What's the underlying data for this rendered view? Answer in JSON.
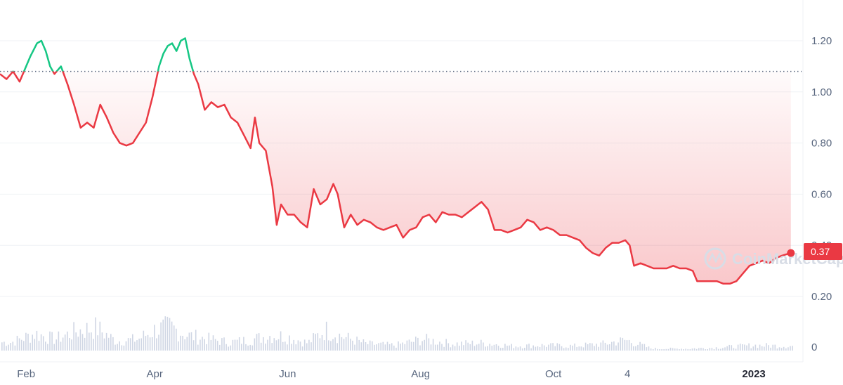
{
  "watermark": "CoinMarketCap",
  "current_price_label": "0.37",
  "colors": {
    "up": "#16c784",
    "down": "#ea3943",
    "grid": "#eff2f5",
    "volume": "#cfd6e4",
    "axis_text": "#58667e"
  },
  "chart_data": {
    "type": "line",
    "title": "",
    "xlabel": "",
    "ylabel": "",
    "ylim": [
      0.15,
      1.35
    ],
    "yticks": [
      "0.20",
      "0.40",
      "0.60",
      "0.80",
      "1.00",
      "1.20"
    ],
    "volume_tick": "0",
    "reference_price": 1.08,
    "current_price": 0.37,
    "x_ticks": [
      {
        "label": "Feb",
        "date": "2022-02-01",
        "bold": false
      },
      {
        "label": "Apr",
        "date": "2022-04-01",
        "bold": false
      },
      {
        "label": "Jun",
        "date": "2022-06-01",
        "bold": false
      },
      {
        "label": "Aug",
        "date": "2022-08-01",
        "bold": false
      },
      {
        "label": "Oct",
        "date": "2022-10-01",
        "bold": false
      },
      {
        "label": "4",
        "date": "2022-11-04",
        "bold": false
      },
      {
        "label": "2023",
        "date": "2023-01-01",
        "bold": true
      }
    ],
    "x_range": [
      "2022-01-20",
      "2023-01-20"
    ],
    "series": [
      {
        "points": [
          [
            "2022-01-20",
            1.07
          ],
          [
            "2022-01-23",
            1.05
          ],
          [
            "2022-01-26",
            1.08
          ],
          [
            "2022-01-29",
            1.04
          ],
          [
            "2022-02-01",
            1.1
          ],
          [
            "2022-02-03",
            1.14
          ],
          [
            "2022-02-06",
            1.19
          ],
          [
            "2022-02-08",
            1.2
          ],
          [
            "2022-02-10",
            1.16
          ],
          [
            "2022-02-12",
            1.1
          ],
          [
            "2022-02-14",
            1.07
          ],
          [
            "2022-02-17",
            1.1
          ],
          [
            "2022-02-20",
            1.03
          ],
          [
            "2022-02-23",
            0.95
          ],
          [
            "2022-02-26",
            0.86
          ],
          [
            "2022-03-01",
            0.88
          ],
          [
            "2022-03-04",
            0.86
          ],
          [
            "2022-03-07",
            0.95
          ],
          [
            "2022-03-10",
            0.9
          ],
          [
            "2022-03-13",
            0.84
          ],
          [
            "2022-03-16",
            0.8
          ],
          [
            "2022-03-19",
            0.79
          ],
          [
            "2022-03-22",
            0.8
          ],
          [
            "2022-03-25",
            0.84
          ],
          [
            "2022-03-28",
            0.88
          ],
          [
            "2022-03-31",
            0.98
          ],
          [
            "2022-04-03",
            1.1
          ],
          [
            "2022-04-05",
            1.15
          ],
          [
            "2022-04-07",
            1.18
          ],
          [
            "2022-04-09",
            1.19
          ],
          [
            "2022-04-11",
            1.16
          ],
          [
            "2022-04-13",
            1.2
          ],
          [
            "2022-04-15",
            1.21
          ],
          [
            "2022-04-17",
            1.13
          ],
          [
            "2022-04-19",
            1.07
          ],
          [
            "2022-04-21",
            1.03
          ],
          [
            "2022-04-24",
            0.93
          ],
          [
            "2022-04-27",
            0.96
          ],
          [
            "2022-04-30",
            0.94
          ],
          [
            "2022-05-03",
            0.95
          ],
          [
            "2022-05-06",
            0.9
          ],
          [
            "2022-05-09",
            0.88
          ],
          [
            "2022-05-12",
            0.83
          ],
          [
            "2022-05-15",
            0.78
          ],
          [
            "2022-05-17",
            0.9
          ],
          [
            "2022-05-19",
            0.8
          ],
          [
            "2022-05-22",
            0.77
          ],
          [
            "2022-05-25",
            0.63
          ],
          [
            "2022-05-27",
            0.48
          ],
          [
            "2022-05-29",
            0.56
          ],
          [
            "2022-06-01",
            0.52
          ],
          [
            "2022-06-04",
            0.52
          ],
          [
            "2022-06-07",
            0.49
          ],
          [
            "2022-06-10",
            0.47
          ],
          [
            "2022-06-13",
            0.62
          ],
          [
            "2022-06-16",
            0.56
          ],
          [
            "2022-06-19",
            0.58
          ],
          [
            "2022-06-22",
            0.64
          ],
          [
            "2022-06-24",
            0.6
          ],
          [
            "2022-06-27",
            0.47
          ],
          [
            "2022-06-30",
            0.52
          ],
          [
            "2022-07-03",
            0.48
          ],
          [
            "2022-07-06",
            0.5
          ],
          [
            "2022-07-09",
            0.49
          ],
          [
            "2022-07-12",
            0.47
          ],
          [
            "2022-07-15",
            0.46
          ],
          [
            "2022-07-18",
            0.47
          ],
          [
            "2022-07-21",
            0.48
          ],
          [
            "2022-07-24",
            0.43
          ],
          [
            "2022-07-27",
            0.46
          ],
          [
            "2022-07-30",
            0.47
          ],
          [
            "2022-08-02",
            0.51
          ],
          [
            "2022-08-05",
            0.52
          ],
          [
            "2022-08-08",
            0.49
          ],
          [
            "2022-08-11",
            0.53
          ],
          [
            "2022-08-14",
            0.52
          ],
          [
            "2022-08-17",
            0.52
          ],
          [
            "2022-08-20",
            0.51
          ],
          [
            "2022-08-23",
            0.53
          ],
          [
            "2022-08-26",
            0.55
          ],
          [
            "2022-08-29",
            0.57
          ],
          [
            "2022-09-01",
            0.54
          ],
          [
            "2022-09-04",
            0.46
          ],
          [
            "2022-09-07",
            0.46
          ],
          [
            "2022-09-10",
            0.45
          ],
          [
            "2022-09-13",
            0.46
          ],
          [
            "2022-09-16",
            0.47
          ],
          [
            "2022-09-19",
            0.5
          ],
          [
            "2022-09-22",
            0.49
          ],
          [
            "2022-09-25",
            0.46
          ],
          [
            "2022-09-28",
            0.47
          ],
          [
            "2022-10-01",
            0.46
          ],
          [
            "2022-10-04",
            0.44
          ],
          [
            "2022-10-07",
            0.44
          ],
          [
            "2022-10-10",
            0.43
          ],
          [
            "2022-10-13",
            0.42
          ],
          [
            "2022-10-16",
            0.39
          ],
          [
            "2022-10-19",
            0.37
          ],
          [
            "2022-10-22",
            0.36
          ],
          [
            "2022-10-25",
            0.39
          ],
          [
            "2022-10-28",
            0.41
          ],
          [
            "2022-10-31",
            0.41
          ],
          [
            "2022-11-03",
            0.42
          ],
          [
            "2022-11-05",
            0.4
          ],
          [
            "2022-11-07",
            0.32
          ],
          [
            "2022-11-10",
            0.33
          ],
          [
            "2022-11-13",
            0.32
          ],
          [
            "2022-11-16",
            0.31
          ],
          [
            "2022-11-19",
            0.31
          ],
          [
            "2022-11-22",
            0.31
          ],
          [
            "2022-11-25",
            0.32
          ],
          [
            "2022-11-28",
            0.31
          ],
          [
            "2022-12-01",
            0.31
          ],
          [
            "2022-12-04",
            0.3
          ],
          [
            "2022-12-06",
            0.26
          ],
          [
            "2022-12-09",
            0.26
          ],
          [
            "2022-12-12",
            0.26
          ],
          [
            "2022-12-15",
            0.26
          ],
          [
            "2022-12-18",
            0.25
          ],
          [
            "2022-12-21",
            0.25
          ],
          [
            "2022-12-24",
            0.26
          ],
          [
            "2022-12-27",
            0.29
          ],
          [
            "2022-12-30",
            0.32
          ],
          [
            "2023-01-02",
            0.33
          ],
          [
            "2023-01-05",
            0.34
          ],
          [
            "2023-01-08",
            0.33
          ],
          [
            "2023-01-11",
            0.35
          ],
          [
            "2023-01-14",
            0.36
          ],
          [
            "2023-01-18",
            0.37
          ]
        ]
      }
    ],
    "volume": [
      [
        "2022-01-25",
        0.22
      ],
      [
        "2022-02-05",
        0.45
      ],
      [
        "2022-02-14",
        0.3
      ],
      [
        "2022-02-24",
        0.52
      ],
      [
        "2022-03-05",
        0.6
      ],
      [
        "2022-03-14",
        0.25
      ],
      [
        "2022-03-24",
        0.3
      ],
      [
        "2022-04-01",
        0.55
      ],
      [
        "2022-04-08",
        0.62
      ],
      [
        "2022-04-16",
        0.4
      ],
      [
        "2022-04-24",
        0.32
      ],
      [
        "2022-05-05",
        0.22
      ],
      [
        "2022-05-14",
        0.28
      ],
      [
        "2022-05-24",
        0.4
      ],
      [
        "2022-05-31",
        0.38
      ],
      [
        "2022-06-10",
        0.2
      ],
      [
        "2022-06-18",
        0.55
      ],
      [
        "2022-06-27",
        0.35
      ],
      [
        "2022-07-07",
        0.18
      ],
      [
        "2022-07-20",
        0.14
      ],
      [
        "2022-08-02",
        0.3
      ],
      [
        "2022-08-15",
        0.18
      ],
      [
        "2022-08-30",
        0.2
      ],
      [
        "2022-09-12",
        0.12
      ],
      [
        "2022-09-27",
        0.14
      ],
      [
        "2022-10-10",
        0.12
      ],
      [
        "2022-10-24",
        0.18
      ],
      [
        "2022-11-03",
        0.28
      ],
      [
        "2022-11-15",
        0.05
      ],
      [
        "2022-12-01",
        0.05
      ],
      [
        "2022-12-15",
        0.08
      ],
      [
        "2023-01-01",
        0.14
      ],
      [
        "2023-01-15",
        0.12
      ]
    ]
  }
}
